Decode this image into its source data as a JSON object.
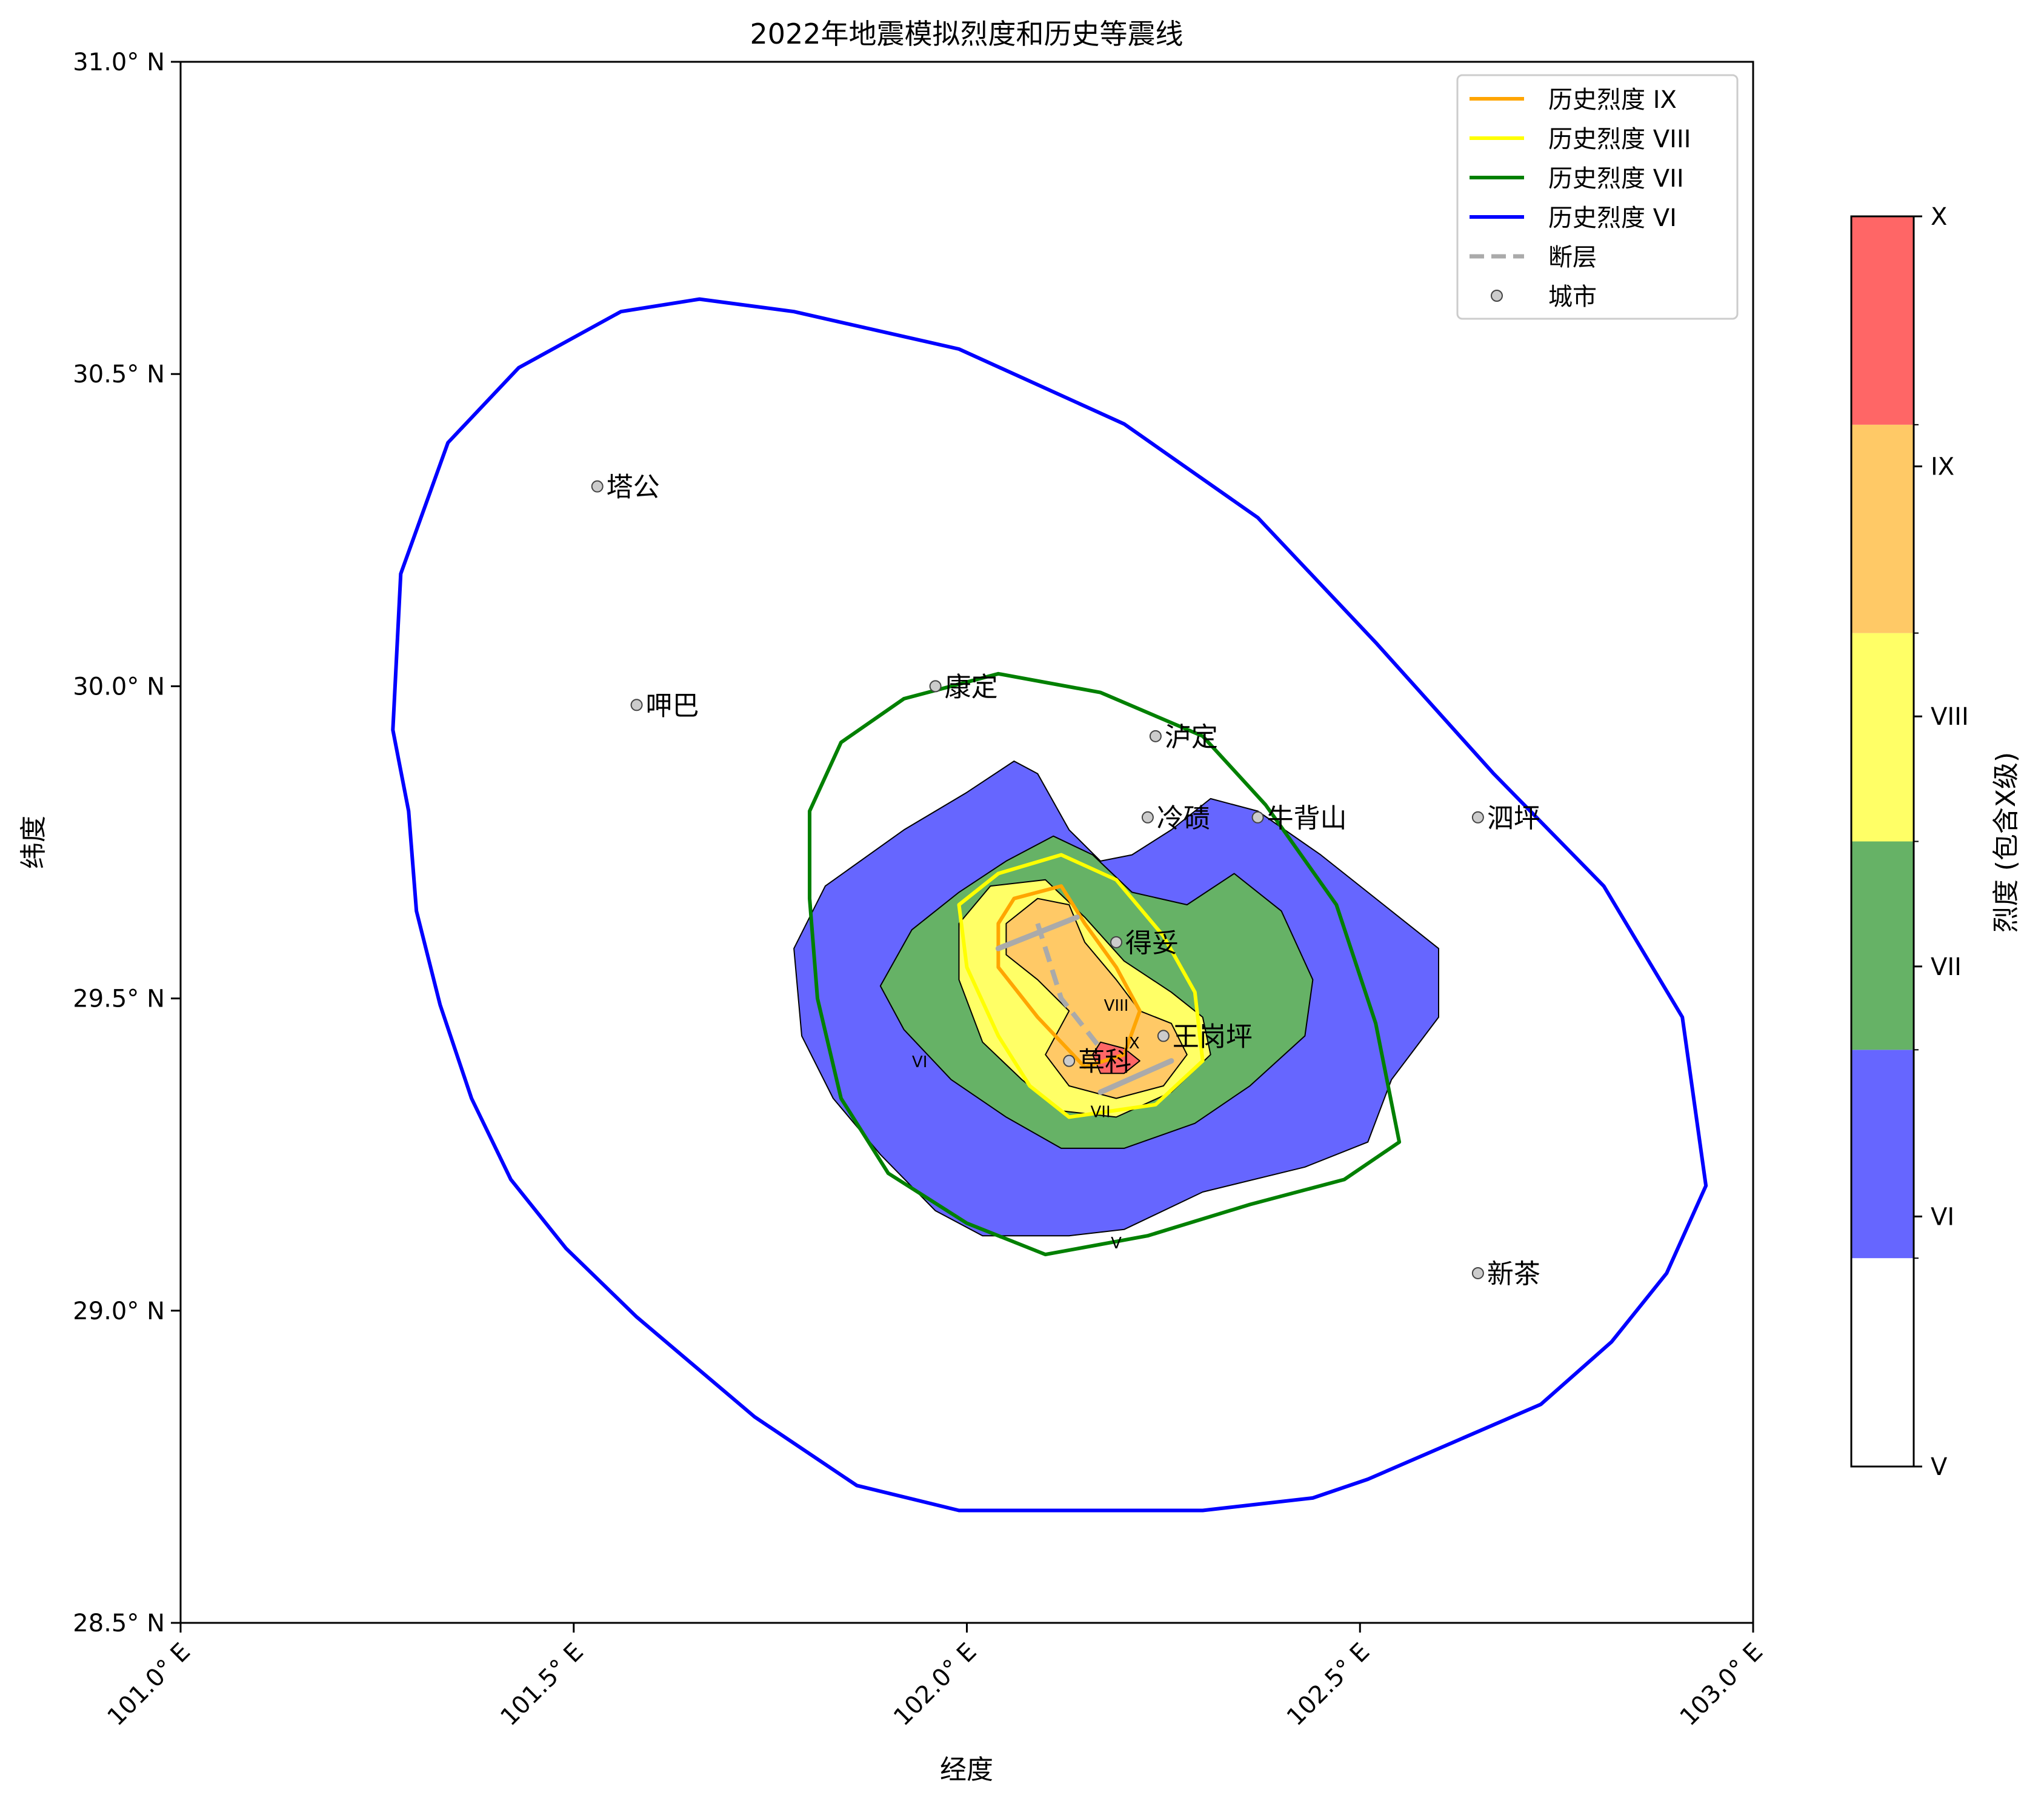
{
  "chart_data": {
    "type": "map",
    "title": "2022年地震模拟烈度和历史等震线",
    "xlabel": "经度",
    "ylabel": "纬度",
    "xlim": [
      101.0,
      103.0
    ],
    "ylim": [
      28.5,
      31.0
    ],
    "x_ticks": [
      101.0,
      101.5,
      102.0,
      102.5,
      103.0
    ],
    "x_tick_labels": [
      "101.0° E",
      "101.5° E",
      "102.0° E",
      "102.5° E",
      "103.0° E"
    ],
    "y_ticks": [
      28.5,
      29.0,
      29.5,
      30.0,
      30.5,
      31.0
    ],
    "y_tick_labels": [
      "28.5° N",
      "29.0° N",
      "29.5° N",
      "30.0° N",
      "30.5° N",
      "31.0° N"
    ],
    "legend_position": "top-right",
    "legend": [
      {
        "label": "历史烈度 IX",
        "kind": "line",
        "color": "#ffa500"
      },
      {
        "label": "历史烈度 VIII",
        "kind": "line",
        "color": "#ffff00"
      },
      {
        "label": "历史烈度 VII",
        "kind": "line",
        "color": "#008000"
      },
      {
        "label": "历史烈度 VI",
        "kind": "line",
        "color": "#0000ff"
      },
      {
        "label": "断层",
        "kind": "dashed",
        "color": "#aaaaaa"
      },
      {
        "label": "城市",
        "kind": "marker",
        "color": "#cccccc"
      }
    ],
    "colorbar": {
      "label": "烈度 (包含X级)",
      "levels": [
        {
          "name": "V",
          "color": "#ffffff"
        },
        {
          "name": "VI",
          "color": "#6666ff"
        },
        {
          "name": "VII",
          "color": "#66b266"
        },
        {
          "name": "VIII",
          "color": "#ffff66"
        },
        {
          "name": "IX",
          "color": "#ffc966"
        },
        {
          "name": "X",
          "color": "#ff6666"
        }
      ],
      "tick_labels": [
        "V",
        "VI",
        "VII",
        "VIII",
        "IX",
        "X"
      ]
    },
    "cities": [
      {
        "name": "塔公",
        "lon": 101.53,
        "lat": 30.32
      },
      {
        "name": "呷巴",
        "lon": 101.58,
        "lat": 29.97
      },
      {
        "name": "康定",
        "lon": 101.96,
        "lat": 30.0
      },
      {
        "name": "泸定",
        "lon": 102.24,
        "lat": 29.92
      },
      {
        "name": "冷碛",
        "lon": 102.23,
        "lat": 29.79
      },
      {
        "name": "牛背山",
        "lon": 102.37,
        "lat": 29.79
      },
      {
        "name": "泗坪",
        "lon": 102.65,
        "lat": 29.79
      },
      {
        "name": "得妥",
        "lon": 102.19,
        "lat": 29.59
      },
      {
        "name": "王岗坪",
        "lon": 102.25,
        "lat": 29.44
      },
      {
        "name": "草科",
        "lon": 102.13,
        "lat": 29.4
      },
      {
        "name": "新茶",
        "lon": 102.65,
        "lat": 29.06
      }
    ],
    "fault": {
      "dashed_trace": [
        [
          102.09,
          29.62
        ],
        [
          102.12,
          29.5
        ],
        [
          102.17,
          29.42
        ]
      ],
      "segments": [
        [
          [
            102.04,
            29.58
          ],
          [
            102.14,
            29.63
          ]
        ],
        [
          [
            102.17,
            29.35
          ],
          [
            102.26,
            29.4
          ]
        ]
      ]
    },
    "historical_isoseismals": [
      {
        "name": "历史烈度 VI",
        "color": "#0000ff",
        "points": [
          [
            101.66,
            30.62
          ],
          [
            101.78,
            30.6
          ],
          [
            101.99,
            30.54
          ],
          [
            102.2,
            30.42
          ],
          [
            102.37,
            30.27
          ],
          [
            102.52,
            30.07
          ],
          [
            102.67,
            29.86
          ],
          [
            102.81,
            29.68
          ],
          [
            102.91,
            29.47
          ],
          [
            102.94,
            29.2
          ],
          [
            102.89,
            29.06
          ],
          [
            102.82,
            28.95
          ],
          [
            102.73,
            28.85
          ],
          [
            102.62,
            28.79
          ],
          [
            102.51,
            28.73
          ],
          [
            102.44,
            28.7
          ],
          [
            102.3,
            28.68
          ],
          [
            102.12,
            28.68
          ],
          [
            101.99,
            28.68
          ],
          [
            101.86,
            28.72
          ],
          [
            101.73,
            28.83
          ],
          [
            101.58,
            28.99
          ],
          [
            101.49,
            29.1
          ],
          [
            101.42,
            29.21
          ],
          [
            101.37,
            29.34
          ],
          [
            101.33,
            29.49
          ],
          [
            101.3,
            29.64
          ],
          [
            101.29,
            29.8
          ],
          [
            101.27,
            29.93
          ],
          [
            101.28,
            30.18
          ],
          [
            101.34,
            30.39
          ],
          [
            101.43,
            30.51
          ],
          [
            101.56,
            30.6
          ]
        ]
      },
      {
        "name": "历史烈度 VII",
        "color": "#008000",
        "points": [
          [
            102.04,
            30.02
          ],
          [
            102.17,
            29.99
          ],
          [
            102.3,
            29.92
          ],
          [
            102.38,
            29.81
          ],
          [
            102.47,
            29.65
          ],
          [
            102.52,
            29.46
          ],
          [
            102.55,
            29.27
          ],
          [
            102.48,
            29.21
          ],
          [
            102.36,
            29.17
          ],
          [
            102.23,
            29.12
          ],
          [
            102.1,
            29.09
          ],
          [
            102.0,
            29.14
          ],
          [
            101.9,
            29.22
          ],
          [
            101.84,
            29.34
          ],
          [
            101.81,
            29.5
          ],
          [
            101.8,
            29.66
          ],
          [
            101.8,
            29.8
          ],
          [
            101.84,
            29.91
          ],
          [
            101.92,
            29.98
          ]
        ]
      },
      {
        "name": "历史烈度 VIII",
        "color": "#ffff00",
        "points": [
          [
            102.04,
            29.7
          ],
          [
            102.12,
            29.73
          ],
          [
            102.19,
            29.69
          ],
          [
            102.25,
            29.6
          ],
          [
            102.29,
            29.51
          ],
          [
            102.3,
            29.4
          ],
          [
            102.24,
            29.33
          ],
          [
            102.13,
            29.31
          ],
          [
            102.08,
            29.36
          ],
          [
            102.04,
            29.44
          ],
          [
            102.0,
            29.55
          ],
          [
            101.99,
            29.65
          ]
        ]
      },
      {
        "name": "历史烈度 IX",
        "color": "#ffa500",
        "points": [
          [
            102.06,
            29.66
          ],
          [
            102.12,
            29.68
          ],
          [
            102.15,
            29.62
          ],
          [
            102.19,
            29.55
          ],
          [
            102.22,
            29.48
          ],
          [
            102.2,
            29.41
          ],
          [
            102.15,
            29.39
          ],
          [
            102.09,
            29.47
          ],
          [
            102.04,
            29.55
          ],
          [
            102.04,
            29.62
          ]
        ]
      }
    ],
    "simulated_intensity_regions": [
      {
        "level": "VI",
        "color": "#6666ff",
        "points": [
          [
            101.92,
            29.77
          ],
          [
            102.0,
            29.83
          ],
          [
            102.06,
            29.88
          ],
          [
            102.09,
            29.86
          ],
          [
            102.13,
            29.77
          ],
          [
            102.17,
            29.72
          ],
          [
            102.21,
            29.73
          ],
          [
            102.26,
            29.77
          ],
          [
            102.31,
            29.82
          ],
          [
            102.37,
            29.8
          ],
          [
            102.45,
            29.73
          ],
          [
            102.53,
            29.65
          ],
          [
            102.6,
            29.58
          ],
          [
            102.6,
            29.47
          ],
          [
            102.54,
            29.37
          ],
          [
            102.51,
            29.27
          ],
          [
            102.43,
            29.23
          ],
          [
            102.3,
            29.19
          ],
          [
            102.2,
            29.13
          ],
          [
            102.13,
            29.12
          ],
          [
            102.02,
            29.12
          ],
          [
            101.96,
            29.16
          ],
          [
            101.89,
            29.25
          ],
          [
            101.83,
            29.34
          ],
          [
            101.79,
            29.44
          ],
          [
            101.78,
            29.58
          ],
          [
            101.82,
            29.68
          ]
        ]
      },
      {
        "level": "VII",
        "color": "#66b266",
        "points": [
          [
            102.05,
            29.72
          ],
          [
            102.11,
            29.76
          ],
          [
            102.16,
            29.73
          ],
          [
            102.21,
            29.67
          ],
          [
            102.28,
            29.65
          ],
          [
            102.34,
            29.7
          ],
          [
            102.4,
            29.64
          ],
          [
            102.44,
            29.53
          ],
          [
            102.43,
            29.44
          ],
          [
            102.36,
            29.36
          ],
          [
            102.29,
            29.3
          ],
          [
            102.2,
            29.26
          ],
          [
            102.12,
            29.26
          ],
          [
            102.05,
            29.31
          ],
          [
            101.98,
            29.37
          ],
          [
            101.92,
            29.45
          ],
          [
            101.89,
            29.52
          ],
          [
            101.93,
            29.61
          ],
          [
            101.99,
            29.67
          ]
        ]
      },
      {
        "level": "VIII",
        "color": "#ffff66",
        "points": [
          [
            102.03,
            29.68
          ],
          [
            102.1,
            29.69
          ],
          [
            102.15,
            29.63
          ],
          [
            102.2,
            29.56
          ],
          [
            102.26,
            29.51
          ],
          [
            102.3,
            29.47
          ],
          [
            102.31,
            29.41
          ],
          [
            102.26,
            29.35
          ],
          [
            102.19,
            29.31
          ],
          [
            102.12,
            29.32
          ],
          [
            102.07,
            29.37
          ],
          [
            102.02,
            29.43
          ],
          [
            101.99,
            29.53
          ],
          [
            101.99,
            29.62
          ]
        ]
      },
      {
        "level": "IX",
        "color": "#ffc966",
        "points": [
          [
            102.09,
            29.66
          ],
          [
            102.13,
            29.65
          ],
          [
            102.15,
            29.59
          ],
          [
            102.19,
            29.53
          ],
          [
            102.22,
            29.48
          ],
          [
            102.26,
            29.46
          ],
          [
            102.28,
            29.41
          ],
          [
            102.25,
            29.36
          ],
          [
            102.19,
            29.34
          ],
          [
            102.13,
            29.36
          ],
          [
            102.1,
            29.41
          ],
          [
            102.13,
            29.48
          ],
          [
            102.09,
            29.53
          ],
          [
            102.05,
            29.57
          ],
          [
            102.05,
            29.62
          ]
        ]
      },
      {
        "level": "X",
        "color": "#ff6666",
        "points": [
          [
            102.17,
            29.43
          ],
          [
            102.2,
            29.42
          ],
          [
            102.22,
            29.4
          ],
          [
            102.2,
            29.38
          ],
          [
            102.17,
            29.38
          ],
          [
            102.16,
            29.41
          ]
        ]
      }
    ],
    "region_labels": [
      {
        "text": "VIII",
        "lon": 102.19,
        "lat": 29.48
      },
      {
        "text": "IX",
        "lon": 102.21,
        "lat": 29.42
      },
      {
        "text": "VII",
        "lon": 102.17,
        "lat": 29.31
      },
      {
        "text": "VI",
        "lon": 101.94,
        "lat": 29.39
      },
      {
        "text": "V",
        "lon": 102.19,
        "lat": 29.1
      }
    ]
  }
}
